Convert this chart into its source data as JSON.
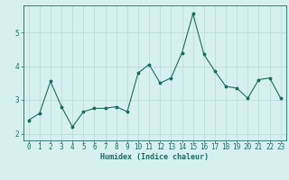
{
  "x": [
    0,
    1,
    2,
    3,
    4,
    5,
    6,
    7,
    8,
    9,
    10,
    11,
    12,
    13,
    14,
    15,
    16,
    17,
    18,
    19,
    20,
    21,
    22,
    23
  ],
  "y": [
    2.4,
    2.6,
    3.55,
    2.8,
    2.2,
    2.65,
    2.75,
    2.75,
    2.8,
    2.65,
    3.8,
    4.05,
    3.5,
    3.65,
    4.4,
    5.55,
    4.35,
    3.85,
    3.4,
    3.35,
    3.05,
    3.6,
    3.65,
    3.05
  ],
  "line_color": "#1a6b5e",
  "marker": "*",
  "marker_size": 2.5,
  "bg_color": "#d6f0f0",
  "grid_color": "#b8d8d8",
  "xlabel": "Humidex (Indice chaleur)",
  "xlim": [
    -0.5,
    23.5
  ],
  "ylim": [
    1.8,
    5.8
  ],
  "yticks": [
    2,
    3,
    4,
    5
  ],
  "xticks": [
    0,
    1,
    2,
    3,
    4,
    5,
    6,
    7,
    8,
    9,
    10,
    11,
    12,
    13,
    14,
    15,
    16,
    17,
    18,
    19,
    20,
    21,
    22,
    23
  ],
  "xlabel_fontsize": 6.0,
  "tick_fontsize": 5.5
}
